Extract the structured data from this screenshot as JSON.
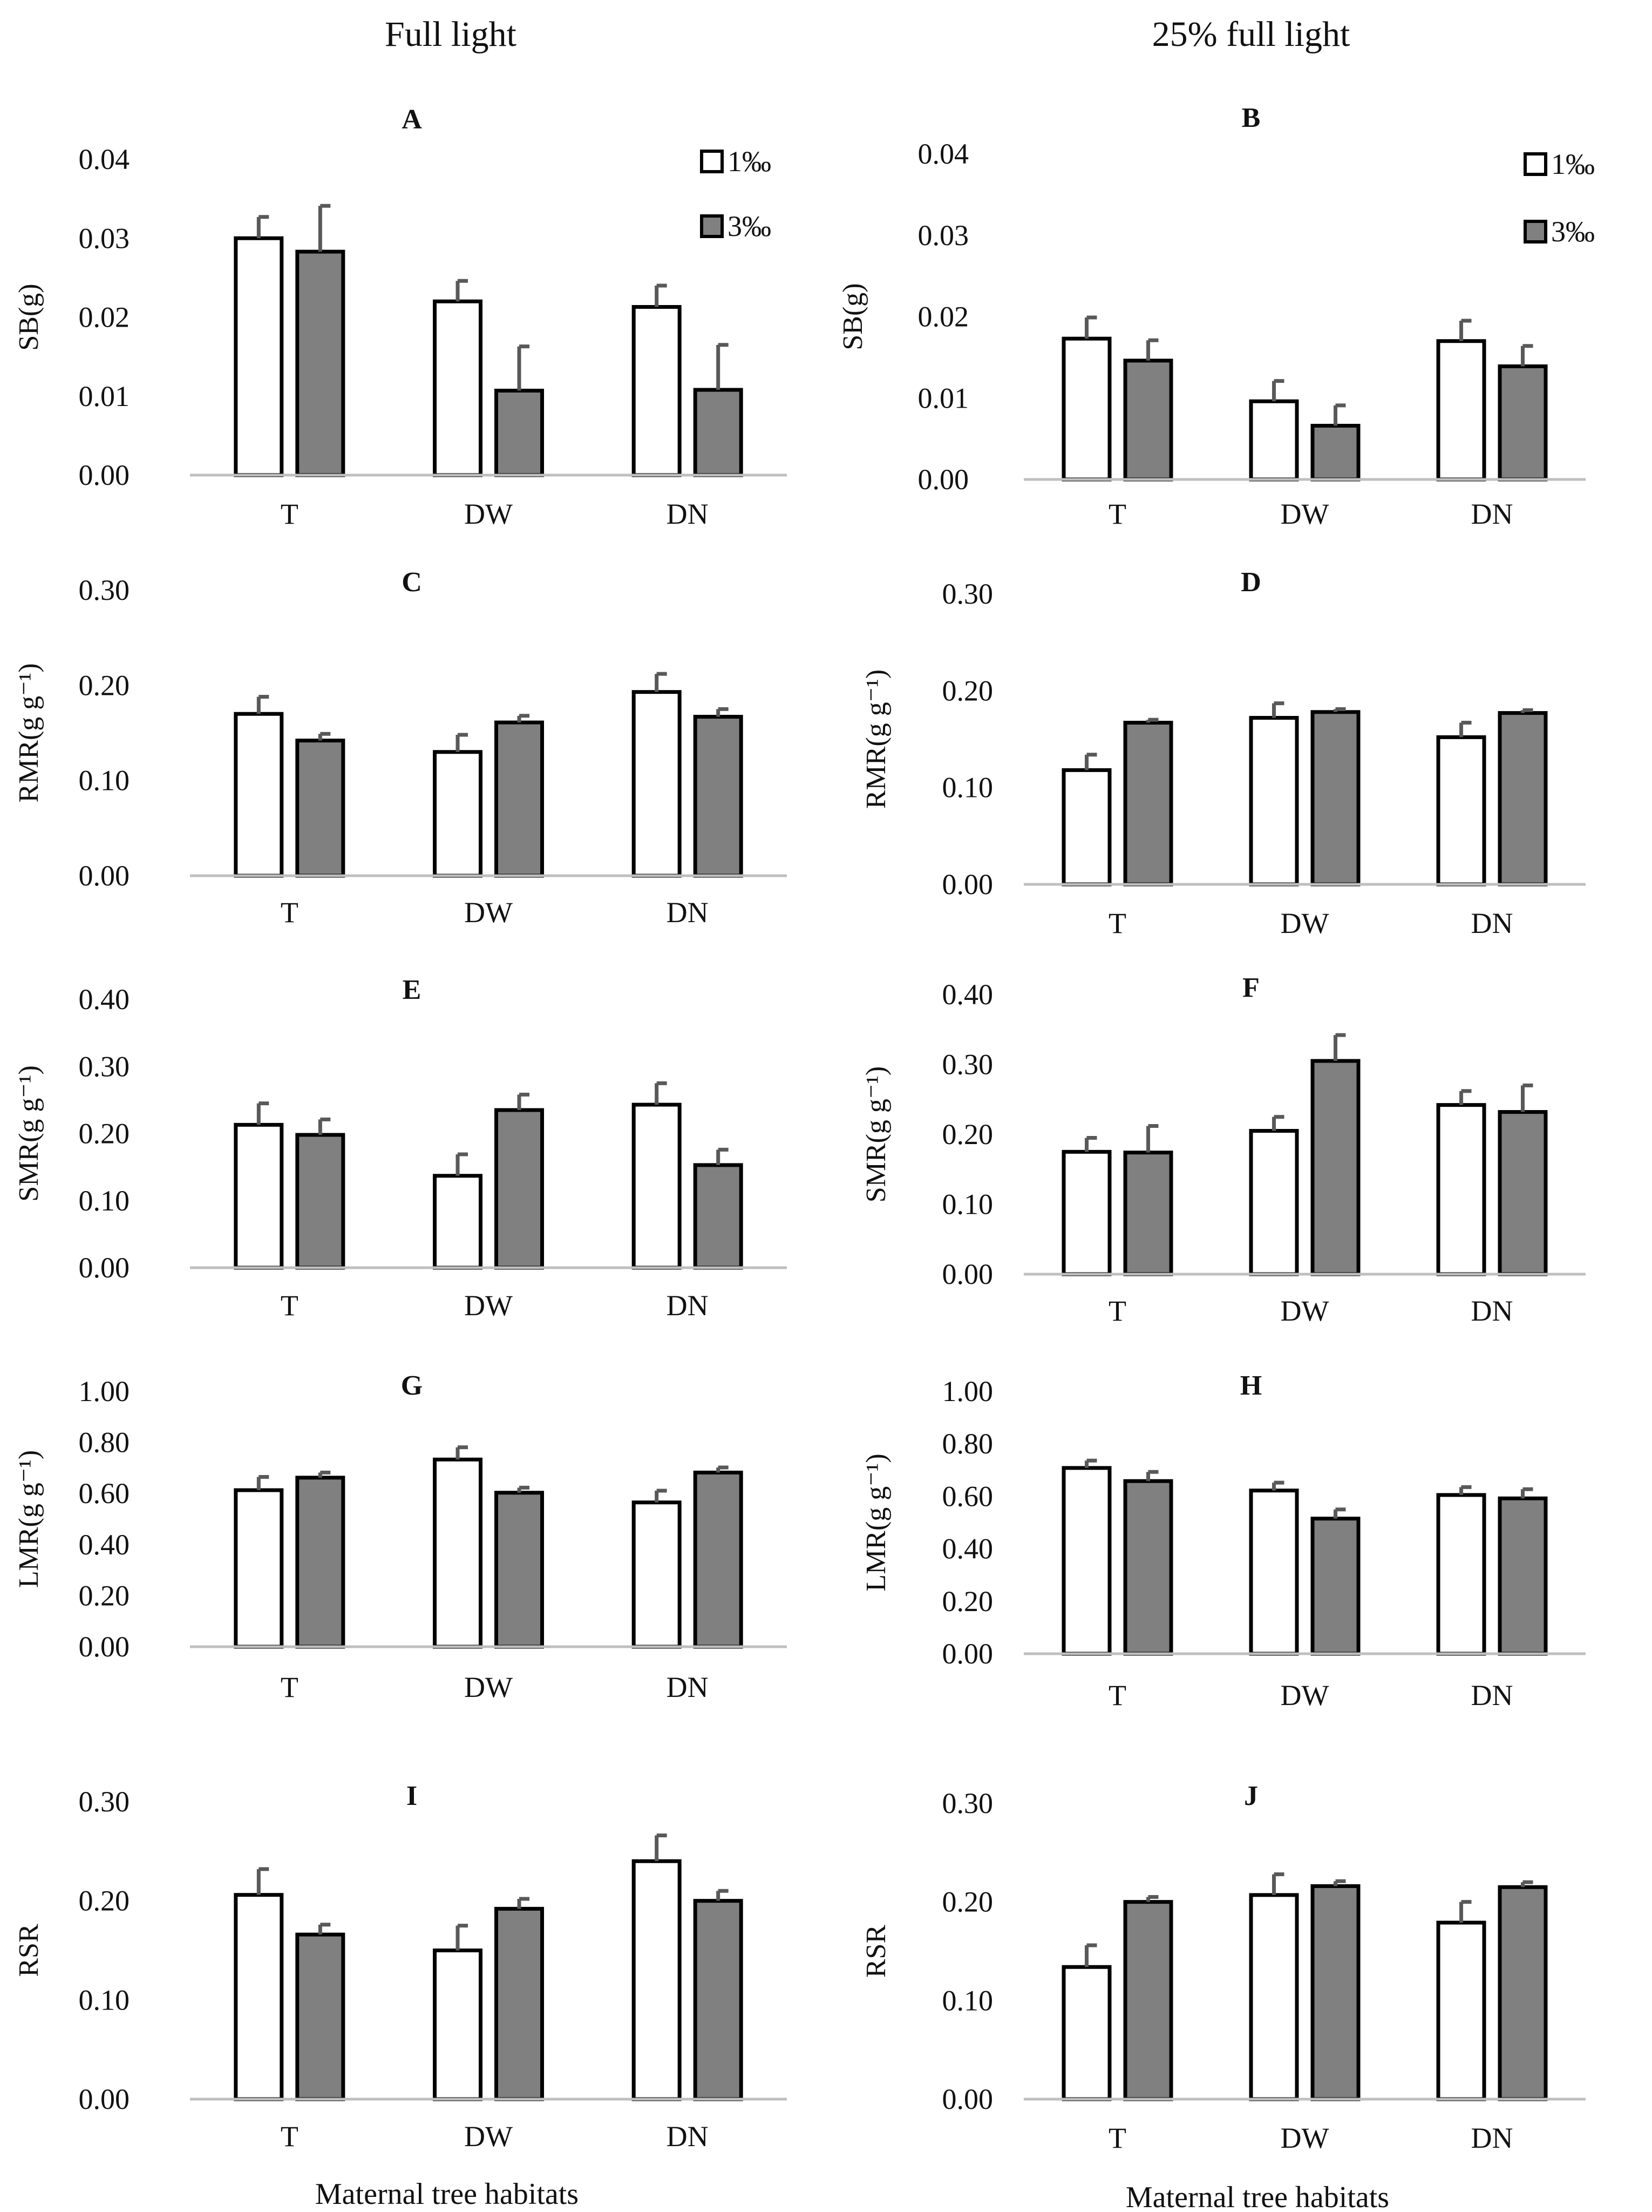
{
  "figure": {
    "column_titles": [
      "Full light",
      "25% full light"
    ],
    "x_title": "Maternal tree habitats",
    "categories": [
      "T",
      "DW",
      "DN"
    ],
    "legend": [
      {
        "name": "1‰",
        "color": "#ffffff"
      },
      {
        "name": "3‰",
        "color": "#808080"
      }
    ]
  },
  "chart_data": [
    {
      "type": "bar",
      "panel": "A",
      "title": "A",
      "ylabel": "SB(g)",
      "ylim": [
        0,
        0.04
      ],
      "yticks": [
        "0.00",
        "0.01",
        "0.02",
        "0.03",
        "0.04"
      ],
      "categories": [
        "T",
        "DW",
        "DN"
      ],
      "series": [
        {
          "name": "1‰",
          "values": [
            0.03,
            0.022,
            0.0213
          ],
          "errors": [
            0.0027,
            0.0026,
            0.0027
          ]
        },
        {
          "name": "3‰",
          "values": [
            0.0283,
            0.0107,
            0.0108
          ],
          "errors": [
            0.0058,
            0.0056,
            0.0057
          ]
        }
      ]
    },
    {
      "type": "bar",
      "panel": "B",
      "title": "B",
      "ylabel": "SB(g)",
      "ylim": [
        0,
        0.04
      ],
      "yticks": [
        "0.00",
        "0.01",
        "0.02",
        "0.03",
        "0.04"
      ],
      "categories": [
        "T",
        "DW",
        "DN"
      ],
      "series": [
        {
          "name": "1‰",
          "values": [
            0.0173,
            0.0096,
            0.017
          ],
          "errors": [
            0.0026,
            0.0025,
            0.0025
          ]
        },
        {
          "name": "3‰",
          "values": [
            0.0146,
            0.0066,
            0.0139
          ],
          "errors": [
            0.0025,
            0.0025,
            0.0025
          ]
        }
      ]
    },
    {
      "type": "bar",
      "panel": "C",
      "title": "C",
      "ylabel": "RMR(g g⁻¹)",
      "ylim": [
        0,
        0.3
      ],
      "yticks": [
        "0.00",
        "0.10",
        "0.20",
        "0.30"
      ],
      "categories": [
        "T",
        "DW",
        "DN"
      ],
      "series": [
        {
          "name": "1‰",
          "values": [
            0.17,
            0.13,
            0.193
          ],
          "errors": [
            0.018,
            0.018,
            0.019
          ]
        },
        {
          "name": "3‰",
          "values": [
            0.142,
            0.161,
            0.167
          ],
          "errors": [
            0.007,
            0.007,
            0.008
          ]
        }
      ]
    },
    {
      "type": "bar",
      "panel": "D",
      "title": "D",
      "ylabel": "RMR(g g⁻¹)",
      "ylim": [
        0,
        0.3
      ],
      "yticks": [
        "0.00",
        "0.10",
        "0.20",
        "0.30"
      ],
      "categories": [
        "T",
        "DW",
        "DN"
      ],
      "series": [
        {
          "name": "1‰",
          "values": [
            0.118,
            0.172,
            0.152
          ],
          "errors": [
            0.016,
            0.015,
            0.015
          ]
        },
        {
          "name": "3‰",
          "values": [
            0.167,
            0.178,
            0.177
          ],
          "errors": [
            0.003,
            0.003,
            0.003
          ]
        }
      ]
    },
    {
      "type": "bar",
      "panel": "E",
      "title": "E",
      "ylabel": "SMR(g g⁻¹)",
      "ylim": [
        0,
        0.4
      ],
      "yticks": [
        "0.00",
        "0.10",
        "0.20",
        "0.30",
        "0.40"
      ],
      "categories": [
        "T",
        "DW",
        "DN"
      ],
      "series": [
        {
          "name": "1‰",
          "values": [
            0.213,
            0.137,
            0.243
          ],
          "errors": [
            0.032,
            0.032,
            0.032
          ]
        },
        {
          "name": "3‰",
          "values": [
            0.198,
            0.235,
            0.153
          ],
          "errors": [
            0.023,
            0.023,
            0.023
          ]
        }
      ]
    },
    {
      "type": "bar",
      "panel": "F",
      "title": "F",
      "ylabel": "SMR(g g⁻¹)",
      "ylim": [
        0,
        0.4
      ],
      "yticks": [
        "0.00",
        "0.10",
        "0.20",
        "0.30",
        "0.40"
      ],
      "categories": [
        "T",
        "DW",
        "DN"
      ],
      "series": [
        {
          "name": "1‰",
          "values": [
            0.175,
            0.205,
            0.242
          ],
          "errors": [
            0.02,
            0.02,
            0.02
          ]
        },
        {
          "name": "3‰",
          "values": [
            0.174,
            0.305,
            0.232
          ],
          "errors": [
            0.038,
            0.037,
            0.038
          ]
        }
      ]
    },
    {
      "type": "bar",
      "panel": "G",
      "title": "G",
      "ylabel": "LMR(g g⁻¹)",
      "ylim": [
        0,
        1
      ],
      "yticks": [
        "0.00",
        "0.20",
        "0.40",
        "0.60",
        "0.80",
        "1.00"
      ],
      "categories": [
        "T",
        "DW",
        "DN"
      ],
      "series": [
        {
          "name": "1‰",
          "values": [
            0.613,
            0.733,
            0.565
          ],
          "errors": [
            0.052,
            0.048,
            0.046
          ]
        },
        {
          "name": "3‰",
          "values": [
            0.662,
            0.603,
            0.682
          ],
          "errors": [
            0.02,
            0.02,
            0.02
          ]
        }
      ]
    },
    {
      "type": "bar",
      "panel": "H",
      "title": "H",
      "ylabel": "LMR(g g⁻¹)",
      "ylim": [
        0,
        1
      ],
      "yticks": [
        "0.00",
        "0.20",
        "0.40",
        "0.60",
        "0.80",
        "1.00"
      ],
      "categories": [
        "T",
        "DW",
        "DN"
      ],
      "series": [
        {
          "name": "1‰",
          "values": [
            0.708,
            0.622,
            0.605
          ],
          "errors": [
            0.028,
            0.03,
            0.03
          ]
        },
        {
          "name": "3‰",
          "values": [
            0.658,
            0.515,
            0.592
          ],
          "errors": [
            0.035,
            0.035,
            0.035
          ]
        }
      ]
    },
    {
      "type": "bar",
      "panel": "I",
      "title": "I",
      "ylabel": "RSR",
      "ylim": [
        0,
        0.3
      ],
      "yticks": [
        "0.00",
        "0.10",
        "0.20",
        "0.30"
      ],
      "categories": [
        "T",
        "DW",
        "DN"
      ],
      "series": [
        {
          "name": "1‰",
          "values": [
            0.206,
            0.15,
            0.24
          ],
          "errors": [
            0.026,
            0.025,
            0.026
          ]
        },
        {
          "name": "3‰",
          "values": [
            0.166,
            0.192,
            0.2
          ],
          "errors": [
            0.01,
            0.01,
            0.01
          ]
        }
      ]
    },
    {
      "type": "bar",
      "panel": "J",
      "title": "J",
      "ylabel": "RSR",
      "ylim": [
        0,
        0.3
      ],
      "yticks": [
        "0.00",
        "0.10",
        "0.20",
        "0.30"
      ],
      "categories": [
        "T",
        "DW",
        "DN"
      ],
      "series": [
        {
          "name": "1‰",
          "values": [
            0.134,
            0.207,
            0.179
          ],
          "errors": [
            0.022,
            0.021,
            0.021
          ]
        },
        {
          "name": "3‰",
          "values": [
            0.2,
            0.216,
            0.215
          ],
          "errors": [
            0.005,
            0.005,
            0.005
          ]
        }
      ]
    }
  ]
}
